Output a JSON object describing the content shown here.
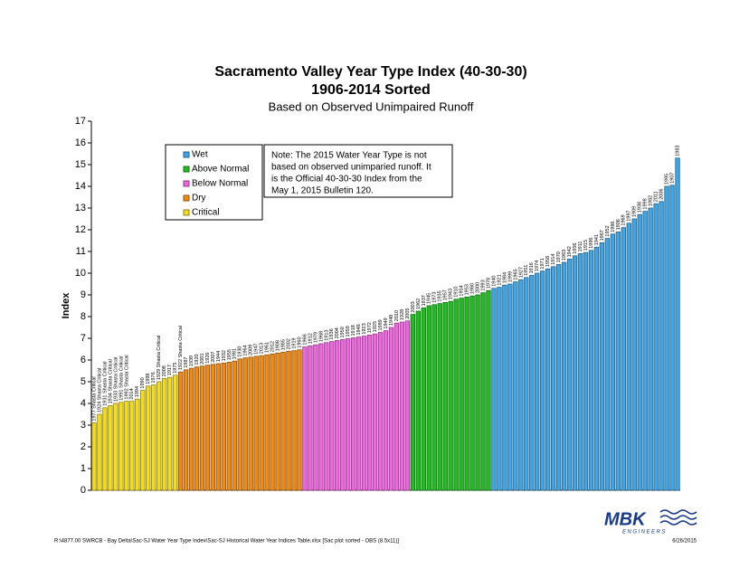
{
  "chart_data": {
    "type": "bar",
    "title": "Sacramento Valley Year Type Index (40-30-30)",
    "subtitle": "1906-2014 Sorted",
    "subtitle2": "Based on Observed Unimpaired Runoff",
    "ylabel": "Index",
    "ylim": [
      0,
      17
    ],
    "yticks": [
      0,
      1,
      2,
      3,
      4,
      5,
      6,
      7,
      8,
      9,
      10,
      11,
      12,
      13,
      14,
      15,
      16,
      17
    ],
    "note": [
      "Note: The 2015 Water Year Type is not",
      "based on observed unimparied runoff.  It",
      "is the Official 40-30-30 Index from the",
      "May 1, 2015 Bulletin 120."
    ],
    "series": [
      {
        "name": "Critical",
        "color": "#f2dc1e",
        "categories": [
          "1977 Shasta Critical",
          "1924 Shasta Critical",
          "1931 Shasta Critical",
          "1934 Shasta Critical",
          "1933 Shasta Critical",
          "1991 Shasta Critical",
          "1992 Shasta Critical",
          "2014",
          "1994",
          "1990",
          "1988",
          "1976",
          "1929 Shasta Critical",
          "2008",
          "1917",
          "1975"
        ],
        "values": [
          3.1,
          3.5,
          3.8,
          3.9,
          4.0,
          4.05,
          4.1,
          4.1,
          4.2,
          4.6,
          4.8,
          4.85,
          5.0,
          5.15,
          5.2,
          5.3
        ]
      },
      {
        "name": "Dry",
        "color": "#f08a12",
        "categories": [
          "1922 Shasta Critical",
          "1987",
          "1939",
          "1920",
          "2001",
          "1926",
          "2007",
          "1944",
          "1932",
          "1955",
          "1981",
          "1930",
          "1964",
          "2009",
          "1947",
          "2013",
          "1961",
          "2012",
          "1908",
          "1985",
          "2002",
          "1919",
          "1960"
        ],
        "values": [
          5.45,
          5.55,
          5.62,
          5.68,
          5.72,
          5.76,
          5.8,
          5.83,
          5.86,
          5.9,
          5.95,
          6.05,
          6.1,
          6.13,
          6.17,
          6.2,
          6.24,
          6.28,
          6.32,
          6.36,
          6.4,
          6.43,
          6.47
        ]
      },
      {
        "name": "Below Normal",
        "color": "#ee66dd",
        "categories": [
          "1966",
          "1912",
          "1979",
          "1968",
          "1913",
          "1936",
          "2004",
          "1950",
          "1959",
          "1918",
          "1946",
          "1923",
          "1972",
          "1925",
          "1989",
          "1949",
          "1948",
          "2010",
          "1928",
          "2005"
        ],
        "values": [
          6.6,
          6.65,
          6.7,
          6.75,
          6.8,
          6.85,
          6.9,
          6.94,
          6.98,
          7.02,
          7.06,
          7.1,
          7.15,
          7.2,
          7.27,
          7.35,
          7.5,
          7.7,
          7.75,
          7.8
        ]
      },
      {
        "name": "Above Normal",
        "color": "#22bb22",
        "categories": [
          "2003",
          "1962",
          "1937",
          "1945",
          "1973",
          "1935",
          "1957",
          "1943",
          "1910",
          "1954",
          "1953",
          "1980",
          "2000",
          "1993",
          "1978"
        ],
        "values": [
          8.1,
          8.25,
          8.4,
          8.5,
          8.55,
          8.6,
          8.65,
          8.7,
          8.8,
          8.85,
          8.9,
          8.95,
          9.0,
          9.1,
          9.2
        ]
      },
      {
        "name": "Wet",
        "color": "#3ea6e6",
        "categories": [
          "1940",
          "1921",
          "1984",
          "1999",
          "1965",
          "1927",
          "1951",
          "1916",
          "1974",
          "1971",
          "1958",
          "1914",
          "1970",
          "1963",
          "1942",
          "1956",
          "1911",
          "1915",
          "1996",
          "1941",
          "1967",
          "1952",
          "1986",
          "1906",
          "1969",
          "1997",
          "1909",
          "1938",
          "1998",
          "1982",
          "2011",
          "2006",
          "1995",
          "1907",
          "1983"
        ],
        "values": [
          9.3,
          9.35,
          9.45,
          9.5,
          9.6,
          9.7,
          9.8,
          9.9,
          10.0,
          10.1,
          10.2,
          10.3,
          10.4,
          10.5,
          10.65,
          10.8,
          10.9,
          10.95,
          11.05,
          11.2,
          11.4,
          11.6,
          11.8,
          11.9,
          12.1,
          12.3,
          12.5,
          12.7,
          12.85,
          13.0,
          13.2,
          13.3,
          14.0,
          14.05,
          15.3
        ]
      }
    ],
    "footer": "R:\\4877.00  SWRCB - Bay Delta\\Sac-SJ Water Year Type Index\\Sac-SJ Historical Water Year Indices Table.xlsx  [Sac plot sorted - OBS (8.5x11)]",
    "date": "6/26/2015",
    "logo": "MBK",
    "logo_sub": "ENGINEERS"
  }
}
